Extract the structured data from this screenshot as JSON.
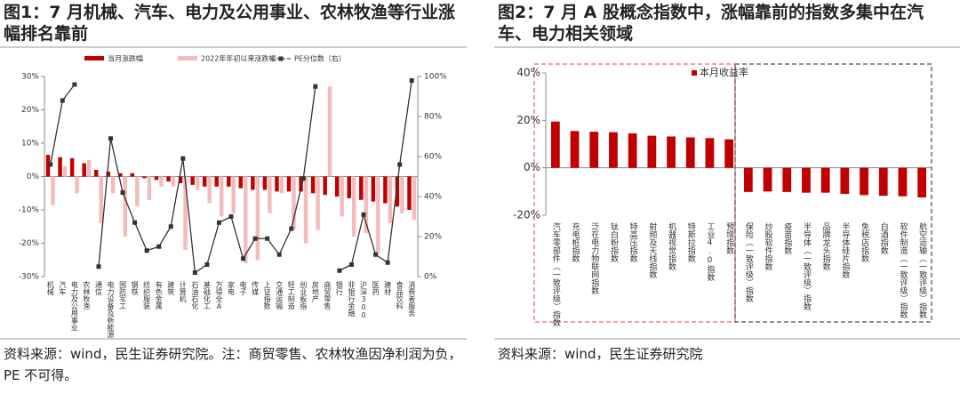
{
  "chart_data": [
    {
      "type": "bar",
      "title": "图1：7 月机械、汽车、电力及公用事业、农林牧渔等行业涨幅排名靠前",
      "source": "资料来源：wind，民生证券研究院。注：商贸零售、农林牧渔因净利润为负，PE 不可得。",
      "categories": [
        "机械",
        "汽车",
        "电力及公用事业",
        "农林牧渔",
        "通信",
        "电力设备及新能源",
        "国防军工",
        "钢铁",
        "纺织服装",
        "有色金属",
        "建筑",
        "计算机",
        "石油石化",
        "基础化工",
        "万得全A",
        "家电",
        "电子",
        "传媒",
        "上证指数",
        "交通运输",
        "轻工制造",
        "创业板指",
        "房地产",
        "商贸零售",
        "银行",
        "非银行金融",
        "沪深300",
        "医药",
        "建材",
        "食品饮料",
        "消费者服务"
      ],
      "series": [
        {
          "name": "当月涨跌幅",
          "type": "bar",
          "color": "#c00000",
          "values": [
            6.5,
            5.8,
            5.5,
            4,
            2,
            1.5,
            1,
            1,
            -0.5,
            -1,
            -1.5,
            -2,
            -2.5,
            -3,
            -3,
            -3,
            -3.5,
            -4,
            -4,
            -4.5,
            -4.5,
            -4.5,
            -5,
            -5.5,
            -6,
            -6.5,
            -7,
            -7.5,
            -8,
            -9,
            -10
          ]
        },
        {
          "name": "2022年年初以来涨跌幅",
          "type": "bar",
          "color": "#f2bcbc",
          "values": [
            -8.5,
            3,
            -5,
            5,
            -14,
            -5,
            -18,
            -9,
            -7,
            -3,
            -3,
            -22,
            -4,
            -8,
            -12,
            -11,
            -26,
            -25,
            -11,
            -5,
            -16,
            -20,
            -16,
            27,
            -12,
            -18,
            -17,
            -23,
            -14,
            -11,
            -13
          ]
        },
        {
          "name": "PE分位数（右）",
          "type": "line",
          "axis": "y2",
          "color": "#333333",
          "values": [
            56,
            88,
            96,
            null,
            5,
            69,
            42,
            27,
            13,
            15,
            25,
            59,
            2,
            6,
            27,
            30,
            9,
            19,
            19,
            11,
            24,
            49,
            95,
            null,
            3,
            6,
            31,
            11,
            7,
            56,
            98
          ]
        }
      ],
      "ylim": [
        -30,
        30
      ],
      "yticks": [
        {
          "value": -30,
          "label": "-30%"
        },
        {
          "value": -20,
          "label": "-20%"
        },
        {
          "value": -10,
          "label": "-10%"
        },
        {
          "value": 0,
          "label": "0%"
        },
        {
          "value": 10,
          "label": "10%"
        },
        {
          "value": 20,
          "label": "20%"
        },
        {
          "value": 30,
          "label": "30%"
        }
      ],
      "y2lim": [
        0,
        100
      ],
      "y2ticks": [
        {
          "value": 0,
          "label": "0%"
        },
        {
          "value": 20,
          "label": "20%"
        },
        {
          "value": 40,
          "label": "40%"
        },
        {
          "value": 60,
          "label": "60%"
        },
        {
          "value": 80,
          "label": "80%"
        },
        {
          "value": 100,
          "label": "100%"
        }
      ],
      "legend": "top"
    },
    {
      "type": "bar",
      "title": "图2：7 月 A 股概念指数中，涨幅靠前的指数多集中在汽车、电力相关领域",
      "source": "资料来源：wind，民生证券研究院",
      "categories": [
        "汽车零部件（一致评级）指数",
        "充电桩指数",
        "泛在电力物联网指数",
        "钛白粉指数",
        "特高压指数",
        "射频及天线指数",
        "机器视觉指数",
        "特斯拉指数",
        "工业4.0指数",
        "预增指数",
        "保险（一致评级）指数",
        "炒股软件指数",
        "疫苗指数",
        "半导体（一致评级）指数",
        "品牌龙头指数",
        "半导体硅片指数",
        "免税店指数",
        "白酒指数",
        "软件制造（一致评级）指数",
        "航空运输（一致评级）指数"
      ],
      "series": [
        {
          "name": "本月收益率",
          "type": "bar",
          "color": "#c00000",
          "values": [
            19.5,
            15.5,
            15.2,
            15,
            14.5,
            13.5,
            13.2,
            12.8,
            12.5,
            12,
            -10.2,
            -10,
            -10.2,
            -10.5,
            -10.5,
            -11,
            -11.5,
            -11.8,
            -12,
            -12.5
          ]
        }
      ],
      "ylim": [
        -20,
        40
      ],
      "yticks": [
        {
          "value": -20,
          "label": "-20%"
        },
        {
          "value": 0,
          "label": "0%"
        },
        {
          "value": 20,
          "label": "20%"
        },
        {
          "value": 40,
          "label": "40%"
        }
      ],
      "legend": "top"
    }
  ]
}
